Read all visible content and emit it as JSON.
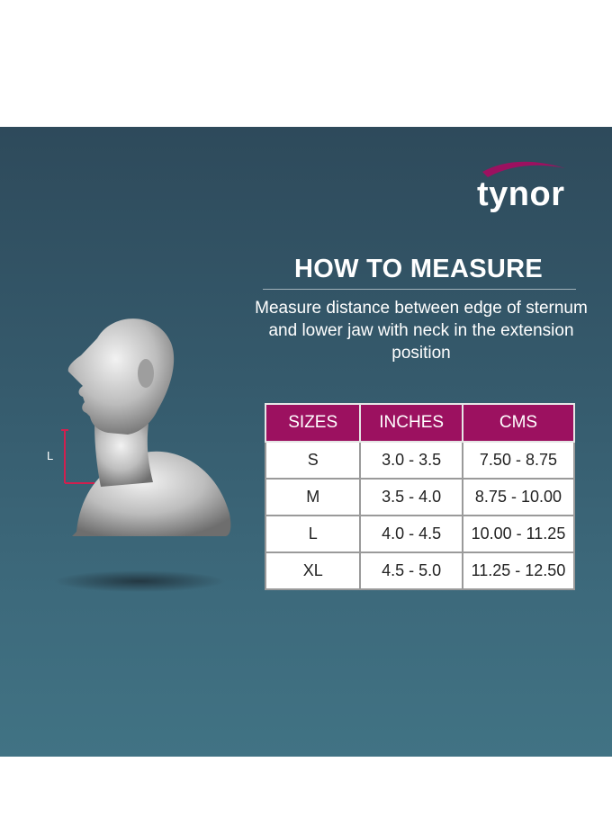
{
  "brand": {
    "name": "tynor",
    "swoosh_color": "#9c1160"
  },
  "heading": "HOW TO MEASURE",
  "description": "Measure distance between edge of sternum and lower jaw with neck in the extension position",
  "figure": {
    "measure_label": "L",
    "marker_color": "#d0204f"
  },
  "table": {
    "header_color": "#9c1160",
    "headers": [
      "SIZES",
      "INCHES",
      "CMS"
    ],
    "rows": [
      [
        "S",
        "3.0 - 3.5",
        "7.50 - 8.75"
      ],
      [
        "M",
        "3.5 - 4.0",
        "8.75 - 10.00"
      ],
      [
        "L",
        "4.0 - 4.5",
        "10.00 - 11.25"
      ],
      [
        "XL",
        "4.5 - 5.0",
        "11.25 - 12.50"
      ]
    ]
  }
}
